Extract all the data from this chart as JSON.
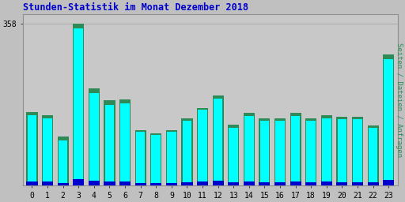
{
  "title": "Stunden-Statistik im Monat Dezember 2018",
  "ylabel": "Seiten / Dateien / Anfragen",
  "xlabel_values": [
    0,
    1,
    2,
    3,
    4,
    5,
    6,
    7,
    8,
    9,
    10,
    11,
    12,
    13,
    14,
    15,
    16,
    17,
    18,
    19,
    20,
    21,
    22,
    23
  ],
  "seiten": [
    155,
    148,
    100,
    348,
    205,
    178,
    182,
    118,
    112,
    118,
    143,
    168,
    192,
    128,
    153,
    143,
    143,
    153,
    143,
    148,
    146,
    146,
    128,
    280
  ],
  "dateien": [
    162,
    155,
    108,
    358,
    215,
    188,
    190,
    122,
    115,
    122,
    148,
    172,
    200,
    135,
    160,
    148,
    148,
    160,
    148,
    155,
    152,
    152,
    132,
    290
  ],
  "anfragen": [
    8,
    8,
    5,
    14,
    10,
    8,
    8,
    5,
    5,
    5,
    6,
    8,
    10,
    6,
    8,
    6,
    6,
    8,
    6,
    8,
    6,
    6,
    6,
    12
  ],
  "color_seiten": "#00FFFF",
  "color_dateien": "#2E8B57",
  "color_anfragen": "#0000CD",
  "bg_color": "#C0C0C0",
  "plot_bg": "#C8C8C8",
  "title_color": "#0000CD",
  "ylabel_color": "#2E8B57",
  "grid_color": "#B0B0B0",
  "ylim": [
    0,
    380
  ],
  "ytick_label": "358",
  "ytick_val": 358
}
